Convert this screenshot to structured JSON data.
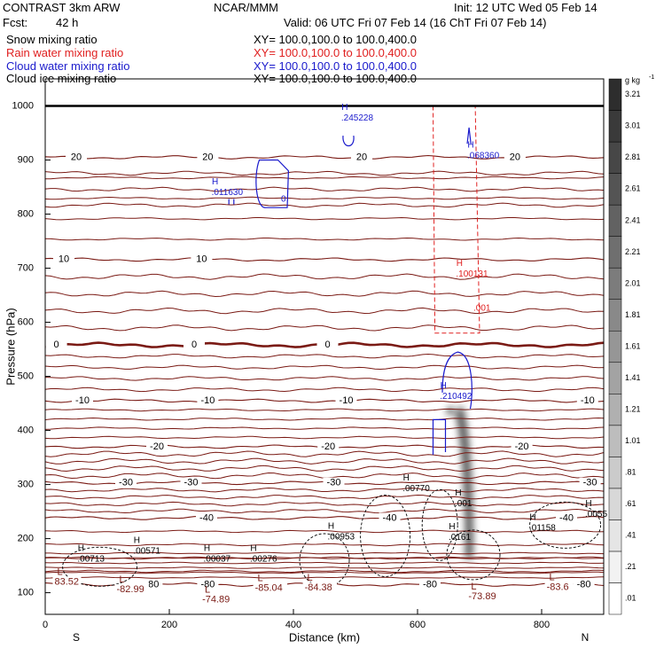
{
  "header": {
    "model": "CONTRAST  3km ARW",
    "org": "NCAR/MMM",
    "init": "Init: 12 UTC Wed 05 Feb 14",
    "fcst_label": "Fcst:",
    "fcst_value": "42 h",
    "valid": "Valid: 06 UTC Fri 07 Feb 14 (16 ChT Fri 07 Feb 14)"
  },
  "legend": [
    {
      "label": "Snow mixing ratio",
      "xy": "XY= 100.0,100.0 to 100.0,400.0",
      "color": "#000000"
    },
    {
      "label": "Rain water mixing ratio",
      "xy": "XY= 100.0,100.0 to 100.0,400.0",
      "color": "#e02020"
    },
    {
      "label": "Cloud water mixing ratio",
      "xy": "XY= 100.0,100.0 to 100.0,400.0",
      "color": "#1a1acc"
    },
    {
      "label": "Cloud ice mixing ratio",
      "xy": "XY= 100.0,100.0 to 100.0,400.0",
      "color": "#000000"
    }
  ],
  "colors": {
    "temperature": "#7a1a14",
    "rain": "#e02020",
    "cloud_water": "#1a1acc",
    "snow": "#000000"
  },
  "chart_data": {
    "type": "cross-section",
    "xlabel": "Distance (km)",
    "ylabel": "Pressure (hPa)",
    "xlim": [
      0,
      900
    ],
    "ylim": [
      1050,
      60
    ],
    "x_ticks": [
      0,
      200,
      400,
      600,
      800
    ],
    "y_ticks": [
      100,
      200,
      300,
      400,
      500,
      600,
      700,
      800,
      900,
      1000
    ],
    "x_end_labels": {
      "left": "S",
      "right": "N"
    },
    "surface_pressure": 1000,
    "colorbar": {
      "unit": "g kg",
      "unit_exp": "-1",
      "labels": [
        ".01",
        ".21",
        ".41",
        ".61",
        ".81",
        "1.01",
        "1.21",
        "1.41",
        "1.61",
        "1.81",
        "2.01",
        "2.21",
        "2.41",
        "2.61",
        "2.81",
        "3.01",
        "3.21"
      ]
    },
    "shaded_max": {
      "x": 665,
      "p_top": 165,
      "p_bottom": 430
    },
    "isotherms": [
      {
        "value": -80,
        "p": 115,
        "labels": [
          "-80",
          "-80",
          "-80",
          "-80"
        ],
        "label_x": [
          172,
          262,
          620,
          868
        ]
      },
      {
        "value": -40,
        "p": 238,
        "labels": [
          "-40",
          "-40",
          "-40"
        ],
        "label_x": [
          260,
          555,
          840
        ]
      },
      {
        "value": -30,
        "p": 303,
        "labels": [
          "-30",
          "-30",
          "-30",
          "-30"
        ],
        "label_x": [
          130,
          235,
          465,
          878
        ]
      },
      {
        "value": -20,
        "p": 370,
        "labels": [
          "-20",
          "-20",
          "-20"
        ],
        "label_x": [
          180,
          456,
          768
        ]
      },
      {
        "value": -10,
        "p": 455,
        "labels": [
          "-10",
          "-10",
          "-10",
          "-10"
        ],
        "label_x": [
          60,
          262,
          485,
          874
        ]
      },
      {
        "value": 0,
        "p": 558,
        "labels": [
          "0",
          "0",
          "0"
        ],
        "label_x": [
          18,
          240,
          455
        ]
      },
      {
        "value": 10,
        "p": 716,
        "labels": [
          "10",
          "10"
        ],
        "label_x": [
          30,
          252
        ]
      },
      {
        "value": 20,
        "p": 905,
        "labels": [
          "20",
          "20",
          "20",
          "20"
        ],
        "label_x": [
          50,
          262,
          510,
          757
        ]
      }
    ],
    "min_labels": [
      {
        "text": "-74.89",
        "x": 253,
        "p": 87
      },
      {
        "text": "-82.99",
        "x": 115,
        "p": 106
      },
      {
        "text": "-85.04",
        "x": 338,
        "p": 108
      },
      {
        "text": "-84.38",
        "x": 418,
        "p": 109
      },
      {
        "text": "-73.89",
        "x": 682,
        "p": 93
      },
      {
        "text": "-83.6",
        "x": 808,
        "p": 110
      },
      {
        "text": "83.52",
        "x": 15,
        "p": 120
      }
    ],
    "snow_labels": [
      {
        "text": ".00713",
        "x": 52,
        "p": 162
      },
      {
        "text": ".00571",
        "x": 142,
        "p": 177
      },
      {
        "text": ".00037",
        "x": 255,
        "p": 162
      },
      {
        "text": ".00276",
        "x": 330,
        "p": 162
      },
      {
        "text": ".00953",
        "x": 455,
        "p": 203
      },
      {
        "text": ".0161",
        "x": 650,
        "p": 202
      },
      {
        "text": ".01158",
        "x": 780,
        "p": 219
      },
      {
        "text": ".0055",
        "x": 870,
        "p": 245
      },
      {
        "text": ".00770",
        "x": 576,
        "p": 292
      },
      {
        "text": ".001",
        "x": 660,
        "p": 264
      }
    ],
    "cloud_water_labels": [
      {
        "text": ".210492",
        "x": 636,
        "p": 463
      },
      {
        "text": ".011630",
        "x": 268,
        "p": 840
      },
      {
        "text": ".068360",
        "x": 680,
        "p": 908
      },
      {
        "text": ".245228",
        "x": 477,
        "p": 977
      },
      {
        "text": "0",
        "x": 380,
        "p": 827
      }
    ],
    "rain_labels": [
      {
        "text": ".001",
        "x": 690,
        "p": 626
      },
      {
        "text": ".100131",
        "x": 662,
        "p": 689
      }
    ]
  }
}
